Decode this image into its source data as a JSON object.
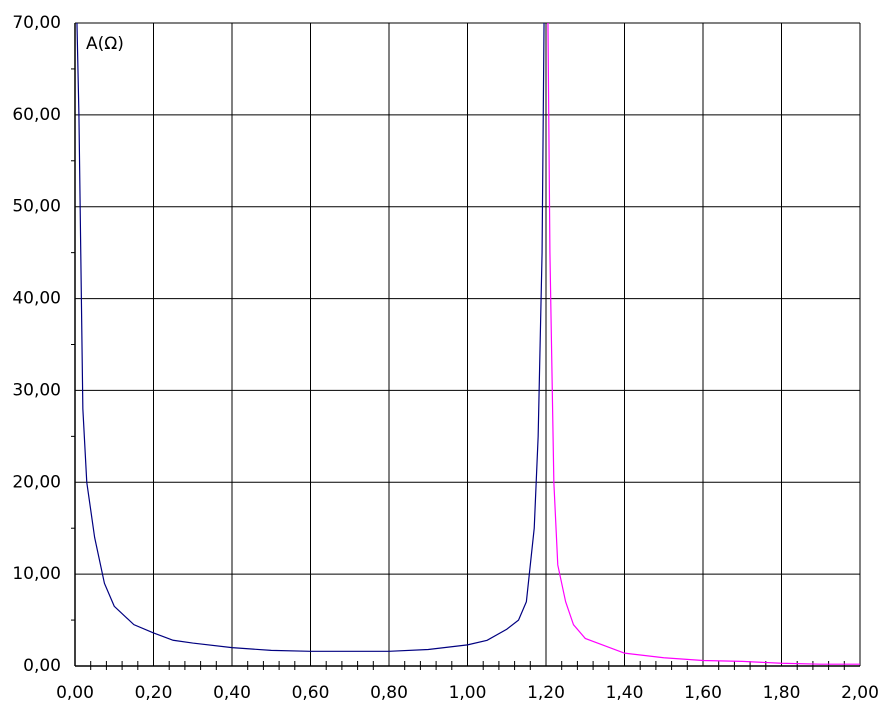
{
  "chart_data": {
    "type": "line",
    "annotation": "A(Ω)",
    "xlim": [
      0,
      2
    ],
    "ylim": [
      0,
      70
    ],
    "xticks": [
      {
        "value": 0,
        "label": "0,00"
      },
      {
        "value": 0.2,
        "label": "0,20"
      },
      {
        "value": 0.4,
        "label": "0,40"
      },
      {
        "value": 0.6,
        "label": "0,60"
      },
      {
        "value": 0.8,
        "label": "0,80"
      },
      {
        "value": 1.0,
        "label": "1,00"
      },
      {
        "value": 1.2,
        "label": "1,20"
      },
      {
        "value": 1.4,
        "label": "1,40"
      },
      {
        "value": 1.6,
        "label": "1,60"
      },
      {
        "value": 1.8,
        "label": "1,80"
      },
      {
        "value": 2.0,
        "label": "2,00"
      }
    ],
    "yticks": [
      {
        "value": 0,
        "label": "0,00"
      },
      {
        "value": 10,
        "label": "10,00"
      },
      {
        "value": 20,
        "label": "20,00"
      },
      {
        "value": 30,
        "label": "30,00"
      },
      {
        "value": 40,
        "label": "40,00"
      },
      {
        "value": 50,
        "label": "50,00"
      },
      {
        "value": 60,
        "label": "60,00"
      },
      {
        "value": 70,
        "label": "70,00"
      }
    ],
    "grid": true,
    "series": [
      {
        "color": "#000080",
        "x": [
          0.005,
          0.01,
          0.02,
          0.03,
          0.05,
          0.075,
          0.1,
          0.15,
          0.2,
          0.25,
          0.3,
          0.4,
          0.5,
          0.6,
          0.7,
          0.8,
          0.9,
          1.0,
          1.05,
          1.1,
          1.13,
          1.15,
          1.17,
          1.18,
          1.19,
          1.195
        ],
        "values": [
          70,
          60,
          28,
          20,
          14,
          9,
          6.5,
          4.5,
          3.6,
          2.8,
          2.5,
          2.0,
          1.7,
          1.6,
          1.6,
          1.6,
          1.8,
          2.3,
          2.8,
          4,
          5,
          7,
          15,
          25,
          45,
          70
        ]
      },
      {
        "color": "#ff00ff",
        "x": [
          1.205,
          1.21,
          1.22,
          1.23,
          1.25,
          1.27,
          1.3,
          1.35,
          1.4,
          1.5,
          1.6,
          1.7,
          1.8,
          1.9,
          2.0
        ],
        "values": [
          70,
          45,
          20,
          11,
          7,
          4.5,
          3,
          2.2,
          1.4,
          0.9,
          0.6,
          0.5,
          0.3,
          0.2,
          0.2
        ]
      }
    ]
  }
}
